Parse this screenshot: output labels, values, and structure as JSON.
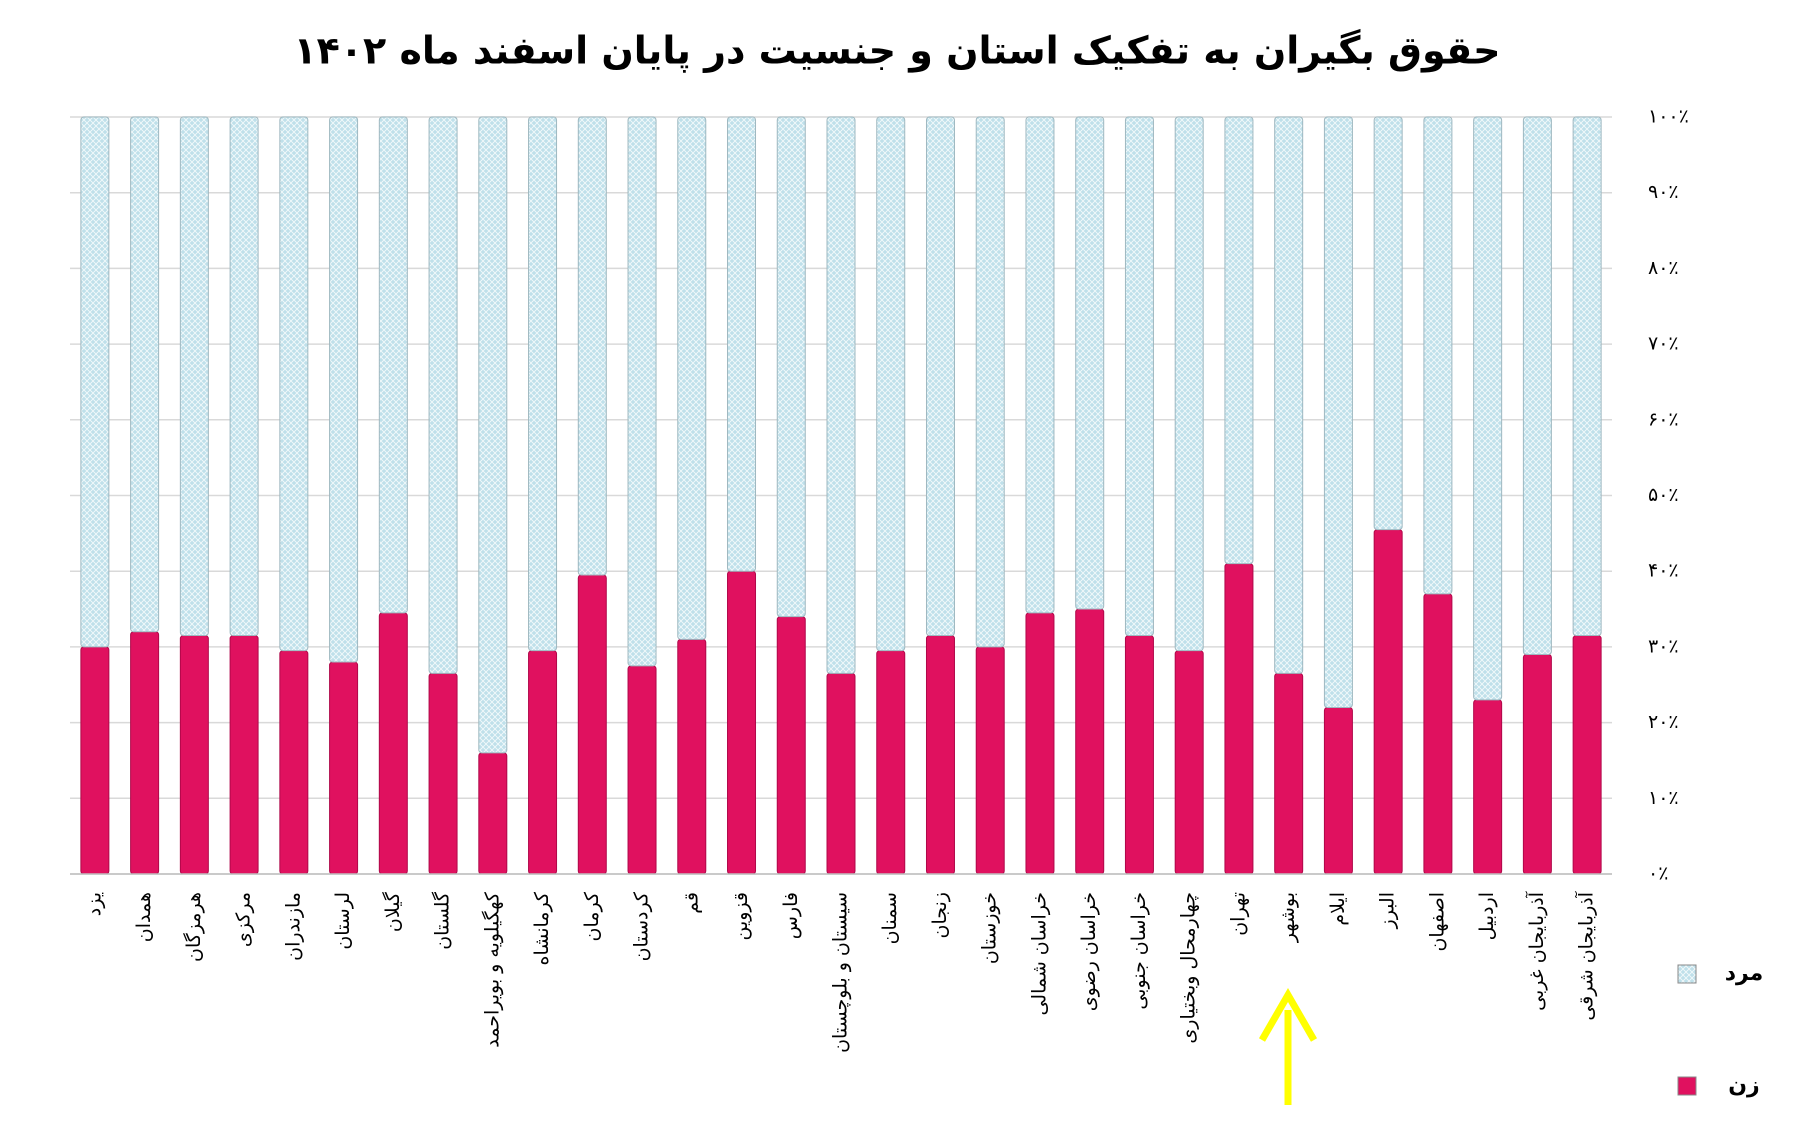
{
  "chart_data": {
    "type": "stacked_bar_percent",
    "title": "حقوق بگیران به تفکیک استان و جنسیت در پایان اسفند ماه ۱۴۰۲",
    "categories": [
      "یزد",
      "همدان",
      "هرمزگان",
      "مرکزی",
      "مازندران",
      "لرستان",
      "گیلان",
      "گلستان",
      "کهگیلویه و بویراحمد",
      "کرمانشاه",
      "کرمان",
      "کردستان",
      "قم",
      "قزوین",
      "فارس",
      "سیستان و بلوچستان",
      "سمنان",
      "زنجان",
      "خوزستان",
      "خراسان شمالی",
      "خراسان رضوی",
      "خراسان جنوبی",
      "چهارمحال وبختیاری",
      "تهران",
      "بوشهر",
      "ایلام",
      "البرز",
      "اصفهان",
      "اردبیل",
      "آذربایجان غربی",
      "آذربایجان شرقی"
    ],
    "series": [
      {
        "name": "زن",
        "color": "#e0115f",
        "values": [
          30,
          32,
          31.5,
          31.5,
          29.5,
          28,
          34.5,
          26.5,
          16,
          29.5,
          39.5,
          27.5,
          31,
          40,
          34,
          26.5,
          29.5,
          31.5,
          30,
          34.5,
          35,
          31.5,
          29.5,
          41,
          26.5,
          22,
          45.5,
          37,
          23,
          29,
          31.5
        ]
      },
      {
        "name": "مرد",
        "color": "#bfe0ea",
        "values": [
          70,
          68,
          68.5,
          68.5,
          70.5,
          72,
          65.5,
          73.5,
          84,
          70.5,
          60.5,
          72.5,
          69,
          60,
          66,
          73.5,
          70.5,
          68.5,
          70,
          65.5,
          65,
          68.5,
          70.5,
          59,
          73.5,
          78,
          54.5,
          63,
          77,
          71,
          68.5
        ]
      }
    ],
    "ylim": [
      0,
      100
    ],
    "yticks": [
      {
        "value": 0,
        "label": "۰٪"
      },
      {
        "value": 10,
        "label": "۱۰٪"
      },
      {
        "value": 20,
        "label": "۲۰٪"
      },
      {
        "value": 30,
        "label": "۳۰٪"
      },
      {
        "value": 40,
        "label": "۴۰٪"
      },
      {
        "value": 50,
        "label": "۵۰٪"
      },
      {
        "value": 60,
        "label": "۶۰٪"
      },
      {
        "value": 70,
        "label": "۷۰٪"
      },
      {
        "value": 80,
        "label": "۸۰٪"
      },
      {
        "value": 90,
        "label": "۹۰٪"
      },
      {
        "value": 100,
        "label": "۱۰۰٪"
      }
    ],
    "grid": true,
    "legend": "right"
  }
}
